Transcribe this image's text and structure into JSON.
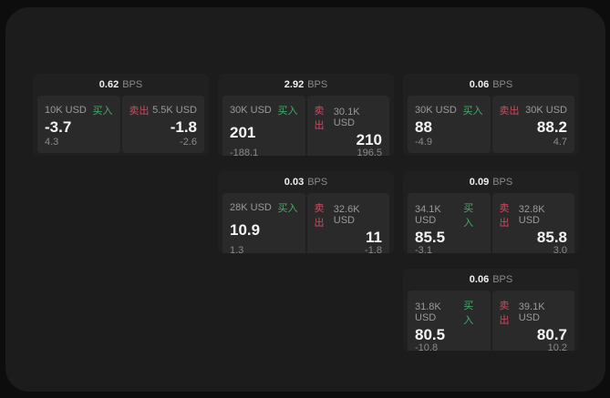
{
  "labels": {
    "bps_unit": "BPS",
    "buy": "买入",
    "sell": "卖出"
  },
  "colors": {
    "buy": "#43ad6c",
    "sell": "#ce4a5f",
    "panel_bg": "#1c1c1c",
    "card_bg": "#202020",
    "tile_bg": "#2a2a2a"
  },
  "cards": [
    {
      "row": 1,
      "col": 1,
      "bps": "0.62",
      "buy": {
        "amount": "10K USD",
        "value": "-3.7",
        "delta": "4.3"
      },
      "sell": {
        "amount": "5.5K USD",
        "value": "-1.8",
        "delta": "-2.6"
      }
    },
    {
      "row": 1,
      "col": 2,
      "bps": "2.92",
      "buy": {
        "amount": "30K USD",
        "value": "201",
        "delta": "-188.1"
      },
      "sell": {
        "amount": "30.1K USD",
        "value": "210",
        "delta": "196.5"
      }
    },
    {
      "row": 1,
      "col": 3,
      "bps": "0.06",
      "buy": {
        "amount": "30K USD",
        "value": "88",
        "delta": "-4.9"
      },
      "sell": {
        "amount": "30K USD",
        "value": "88.2",
        "delta": "4.7"
      }
    },
    {
      "row": 2,
      "col": 2,
      "bps": "0.03",
      "buy": {
        "amount": "28K USD",
        "value": "10.9",
        "delta": "1.3"
      },
      "sell": {
        "amount": "32.6K USD",
        "value": "11",
        "delta": "-1.8"
      }
    },
    {
      "row": 2,
      "col": 3,
      "bps": "0.09",
      "buy": {
        "amount": "34.1K USD",
        "value": "85.5",
        "delta": "-3.1"
      },
      "sell": {
        "amount": "32.8K USD",
        "value": "85.8",
        "delta": "3.0"
      }
    },
    {
      "row": 3,
      "col": 3,
      "bps": "0.06",
      "buy": {
        "amount": "31.8K USD",
        "value": "80.5",
        "delta": "-10.8"
      },
      "sell": {
        "amount": "39.1K USD",
        "value": "80.7",
        "delta": "10.2"
      }
    }
  ]
}
